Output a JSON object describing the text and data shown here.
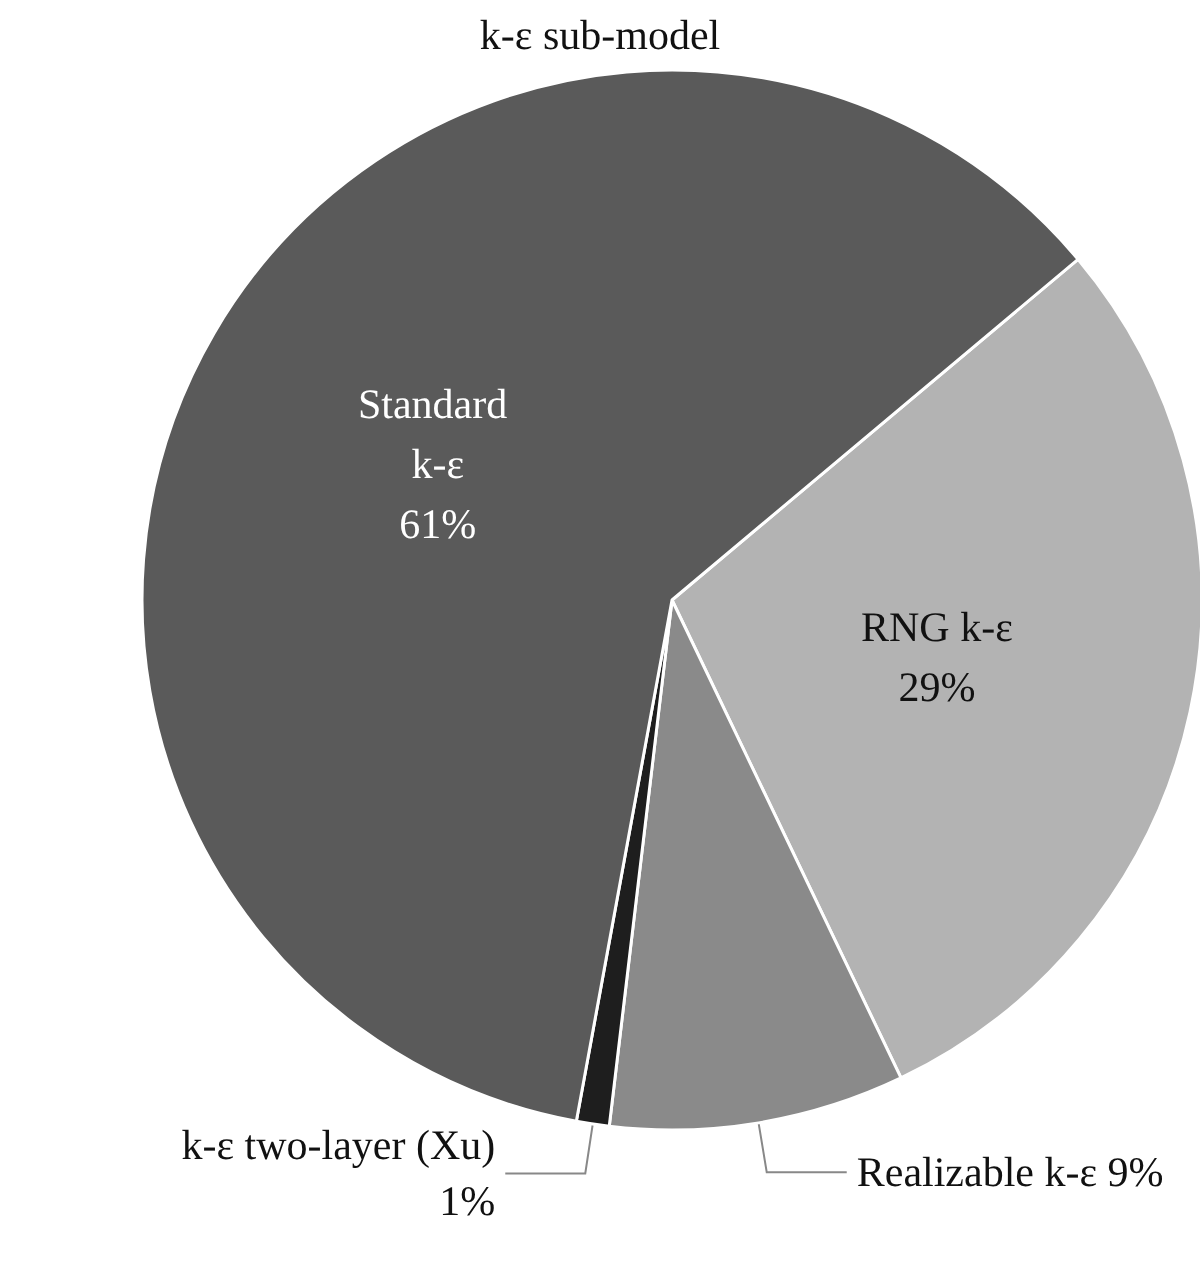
{
  "chart_data": {
    "type": "pie",
    "title": "k-ε sub-model",
    "categories": [
      "RNG k-ε",
      "Realizable k-ε",
      "k-ε two-layer (Xu)",
      "Standard k-ε"
    ],
    "values": [
      29,
      9,
      1,
      61
    ],
    "colors": [
      "#b3b3b3",
      "#8a8a8a",
      "#1e1e1e",
      "#5a5a5a"
    ],
    "value_labels": [
      "29%",
      "9%",
      "1%",
      "61%"
    ],
    "legend": false
  }
}
